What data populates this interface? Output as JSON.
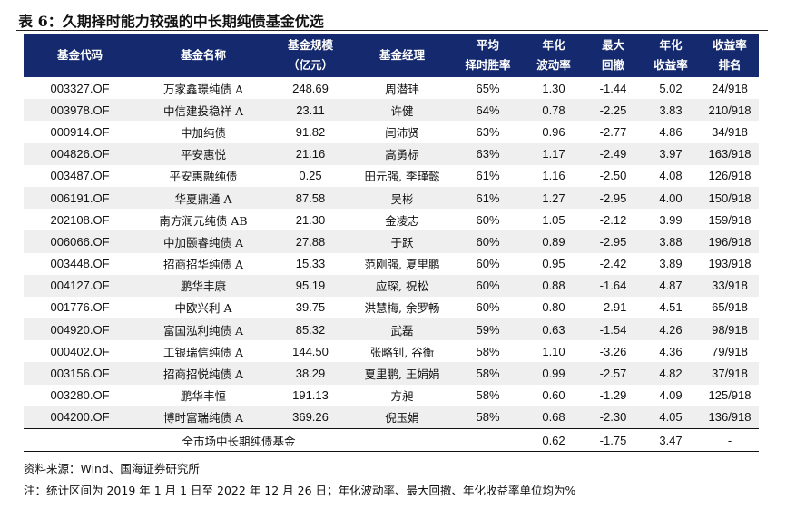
{
  "title": "表 6：久期择时能力较强的中长期纯债基金优选",
  "headers": [
    {
      "l1": "基金代码",
      "l2": ""
    },
    {
      "l1": "基金名称",
      "l2": ""
    },
    {
      "l1": "基金规模",
      "l2": "（亿元）"
    },
    {
      "l1": "基金经理",
      "l2": ""
    },
    {
      "l1": "平均",
      "l2": "择时胜率"
    },
    {
      "l1": "年化",
      "l2": "波动率"
    },
    {
      "l1": "最大",
      "l2": "回撤"
    },
    {
      "l1": "年化",
      "l2": "收益率"
    },
    {
      "l1": "收益率",
      "l2": "排名"
    }
  ],
  "rows": [
    [
      "003327.OF",
      "万家鑫璟纯债 A",
      "248.69",
      "周潜玮",
      "65%",
      "1.30",
      "-1.44",
      "5.02",
      "24/918"
    ],
    [
      "003978.OF",
      "中信建投稳祥 A",
      "23.11",
      "许健",
      "64%",
      "0.78",
      "-2.25",
      "3.83",
      "210/918"
    ],
    [
      "000914.OF",
      "中加纯债",
      "91.82",
      "闫沛贤",
      "63%",
      "0.96",
      "-2.77",
      "4.86",
      "34/918"
    ],
    [
      "004826.OF",
      "平安惠悦",
      "21.16",
      "高勇标",
      "63%",
      "1.17",
      "-2.49",
      "3.97",
      "163/918"
    ],
    [
      "003487.OF",
      "平安惠融纯债",
      "0.25",
      "田元强, 李瑾懿",
      "61%",
      "1.16",
      "-2.50",
      "4.08",
      "126/918"
    ],
    [
      "006191.OF",
      "华夏鼎通 A",
      "87.58",
      "吴彬",
      "61%",
      "1.27",
      "-2.95",
      "4.00",
      "150/918"
    ],
    [
      "202108.OF",
      "南方润元纯债 AB",
      "21.30",
      "金凌志",
      "60%",
      "1.05",
      "-2.12",
      "3.99",
      "159/918"
    ],
    [
      "006066.OF",
      "中加颐睿纯债 A",
      "27.88",
      "于跃",
      "60%",
      "0.89",
      "-2.95",
      "3.88",
      "196/918"
    ],
    [
      "003448.OF",
      "招商招华纯债 A",
      "15.33",
      "范刚强, 夏里鹏",
      "60%",
      "0.95",
      "-2.42",
      "3.89",
      "193/918"
    ],
    [
      "004127.OF",
      "鹏华丰康",
      "95.19",
      "应琛, 祝松",
      "60%",
      "0.88",
      "-1.64",
      "4.87",
      "33/918"
    ],
    [
      "001776.OF",
      "中欧兴利 A",
      "39.75",
      "洪慧梅, 余罗畅",
      "60%",
      "0.80",
      "-2.91",
      "4.51",
      "65/918"
    ],
    [
      "004920.OF",
      "富国泓利纯债 A",
      "85.32",
      "武磊",
      "59%",
      "0.63",
      "-1.54",
      "4.26",
      "98/918"
    ],
    [
      "000402.OF",
      "工银瑞信纯债 A",
      "144.50",
      "张略钊, 谷衡",
      "58%",
      "1.10",
      "-3.26",
      "4.36",
      "79/918"
    ],
    [
      "003156.OF",
      "招商招悦纯债 A",
      "38.29",
      "夏里鹏, 王娟娟",
      "58%",
      "0.99",
      "-2.57",
      "4.82",
      "37/918"
    ],
    [
      "003280.OF",
      "鹏华丰恒",
      "191.13",
      "方昶",
      "58%",
      "0.60",
      "-1.29",
      "4.09",
      "125/918"
    ],
    [
      "004200.OF",
      "博时富瑞纯债 A",
      "369.26",
      "倪玉娟",
      "58%",
      "0.68",
      "-2.30",
      "4.05",
      "136/918"
    ]
  ],
  "summary": {
    "label": "全市场中长期纯债基金",
    "win": "",
    "vol": "0.62",
    "dd": "-1.75",
    "ret": "3.47",
    "rank": "-"
  },
  "source": "资料来源：Wind、国海证券研究所",
  "note": "注：统计区间为 2019 年 1 月 1 日至 2022 年 12 月 26 日；年化波动率、最大回撤、年化收益率单位均为%",
  "colors": {
    "header_bg": "#14296e",
    "stripe": "#efefef"
  }
}
